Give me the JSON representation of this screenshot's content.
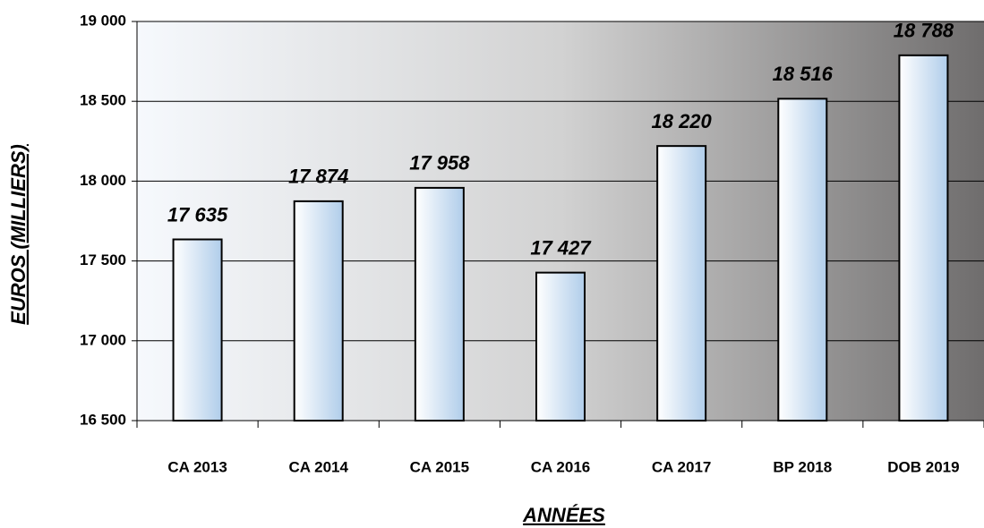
{
  "chart_data": {
    "type": "bar",
    "x_label": "ANNÉES",
    "y_label": "EUROS (MILLIERS)",
    "categories": [
      "CA 2013",
      "CA 2014",
      "CA 2015",
      "CA 2016",
      "CA 2017",
      "BP 2018",
      "DOB 2019"
    ],
    "values": [
      17635,
      17874,
      17958,
      17427,
      18220,
      18516,
      18788
    ],
    "value_labels": [
      "17 635",
      "17 874",
      "17 958",
      "17 427",
      "18 220",
      "18 516",
      "18 788"
    ],
    "color": "#b8d4ee",
    "ylim": [
      16500,
      19000
    ],
    "yticks": [
      {
        "value": 16500,
        "label": "16 500"
      },
      {
        "value": 17000,
        "label": "17 000"
      },
      {
        "value": 17500,
        "label": "17 500"
      },
      {
        "value": 18000,
        "label": "18 000"
      },
      {
        "value": 18500,
        "label": "18 500"
      },
      {
        "value": 19000,
        "label": "19 000"
      }
    ],
    "grid": true
  }
}
